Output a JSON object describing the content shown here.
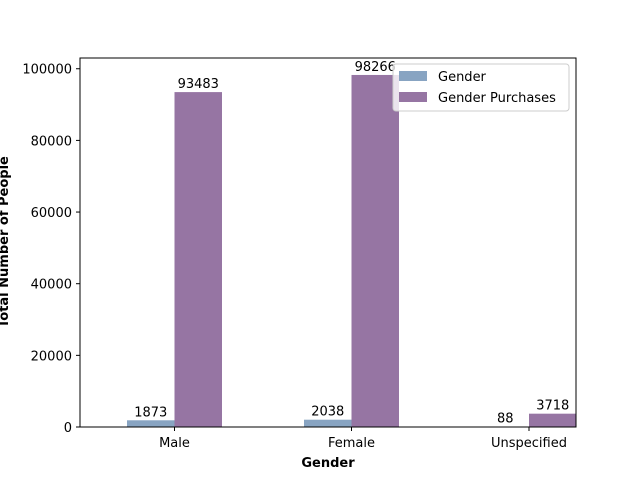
{
  "chart_data": {
    "type": "bar",
    "title": "",
    "xlabel": "Gender",
    "ylabel": "Total Number of People",
    "categories": [
      "Male",
      "Female",
      "Unspecified"
    ],
    "series": [
      {
        "name": "Gender",
        "values": [
          1873,
          2038,
          88
        ],
        "color": "#88a4c2"
      },
      {
        "name": "Gender Purchases",
        "values": [
          93483,
          98266,
          3718
        ],
        "color": "#9675a3"
      }
    ],
    "ylim": [
      0,
      103000
    ],
    "yticks": [
      0,
      20000,
      40000,
      60000,
      80000,
      100000
    ],
    "grid": false,
    "legend_position": "top-right"
  }
}
